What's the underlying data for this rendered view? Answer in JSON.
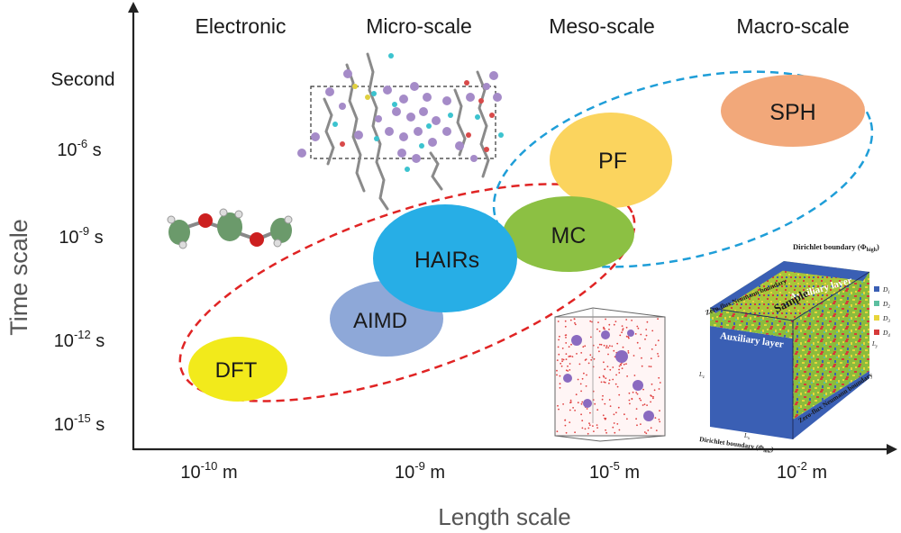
{
  "categories": [
    "Electronic",
    "Micro-scale",
    "Meso-scale",
    "Macro-scale"
  ],
  "axes": {
    "x_title": "Length scale",
    "y_title": "Time scale",
    "x_ticks": [
      {
        "base": "10",
        "exp": "-10",
        "unit": " m"
      },
      {
        "base": "10",
        "exp": "-9",
        "unit": " m"
      },
      {
        "base": "10",
        "exp": "-5",
        "unit": " m"
      },
      {
        "base": "10",
        "exp": "-2",
        "unit": " m"
      }
    ],
    "y_ticks": [
      {
        "base": "Second",
        "exp": "",
        "unit": ""
      },
      {
        "base": "10",
        "exp": "-6",
        "unit": " s"
      },
      {
        "base": "10",
        "exp": "-9",
        "unit": " s"
      },
      {
        "base": "10",
        "exp": "-12",
        "unit": " s"
      },
      {
        "base": "10",
        "exp": "-15",
        "unit": " s"
      }
    ]
  },
  "methods": [
    {
      "label": "DFT",
      "color": "#f2ea1b"
    },
    {
      "label": "AIMD",
      "color": "#8ea8d8"
    },
    {
      "label": "HAIRs",
      "color": "#27aee6"
    },
    {
      "label": "MC",
      "color": "#8cc043"
    },
    {
      "label": "PF",
      "color": "#fbd45e"
    },
    {
      "label": "SPH",
      "color": "#f2a87a"
    }
  ],
  "groups": [
    {
      "color": "#e02424"
    },
    {
      "color": "#1f9ed8"
    }
  ],
  "inset_macro": {
    "title": "Dirichlet boundary (Φ",
    "title_sub": "high",
    "title_end": ")",
    "aux_top": "Auxiliary layer",
    "aux_bottom": "Auxiliary layer",
    "sample": "Sample",
    "neumann_left": "Zero-flux Neumann boundary",
    "neumann_right": "Zero-flux Neumann boundary",
    "bottom": "Dirichlet boundary (Φ",
    "bottom_sub": "low",
    "bottom_end": ")",
    "dim_z": "L",
    "dim_z_sub": "z",
    "dim_x": "L",
    "dim_x_sub": "x",
    "dim_y": "L",
    "dim_y_sub": "y",
    "legend": [
      {
        "label": "D",
        "sub": "1",
        "color": "#3a5fb4"
      },
      {
        "label": "D",
        "sub": "2",
        "color": "#5bbfa0"
      },
      {
        "label": "D",
        "sub": "3",
        "color": "#e8d53a"
      },
      {
        "label": "D",
        "sub": "4",
        "color": "#d63a3a"
      }
    ]
  }
}
